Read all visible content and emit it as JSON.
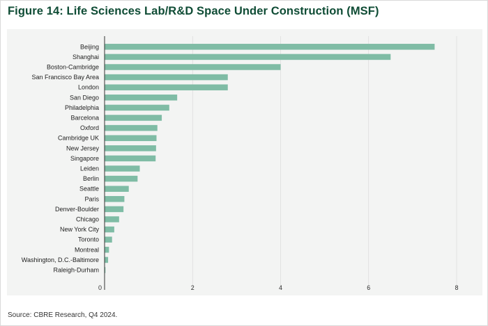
{
  "title": "Figure 14: Life Sciences Lab/R&D Space Under Construction (MSF)",
  "source": "Source: CBRE Research, Q4 2024.",
  "colors": {
    "bar": "#7fbca5",
    "title": "#0f4c35",
    "panel": "#f3f4f3",
    "axis": "#333333",
    "grid": "#d6d6d6"
  },
  "chart_data": {
    "type": "bar",
    "orientation": "horizontal",
    "categories": [
      "Beijing",
      "Shanghai",
      "Boston-Cambridge",
      "San Francisco Bay Area",
      "London",
      "San Diego",
      "Philadelphia",
      "Barcelona",
      "Oxford",
      "Cambridge UK",
      "New Jersey",
      "Singapore",
      "Leiden",
      "Berlin",
      "Seattle",
      "Paris",
      "Denver-Boulder",
      "Chicago",
      "New York City",
      "Toronto",
      "Montreal",
      "Washington, D.C.-Baltimore",
      "Raleigh-Durham"
    ],
    "values": [
      7.5,
      6.5,
      4.0,
      2.8,
      2.8,
      1.65,
      1.47,
      1.3,
      1.2,
      1.18,
      1.17,
      1.16,
      0.8,
      0.75,
      0.55,
      0.45,
      0.43,
      0.33,
      0.22,
      0.17,
      0.1,
      0.08,
      0.02
    ],
    "xticks": [
      0,
      2,
      4,
      6,
      8
    ],
    "xlim": [
      0,
      8
    ],
    "title": "Figure 14: Life Sciences Lab/R&D Space Under Construction (MSF)",
    "xlabel": "",
    "ylabel": "",
    "grid": true,
    "legend": "none"
  }
}
